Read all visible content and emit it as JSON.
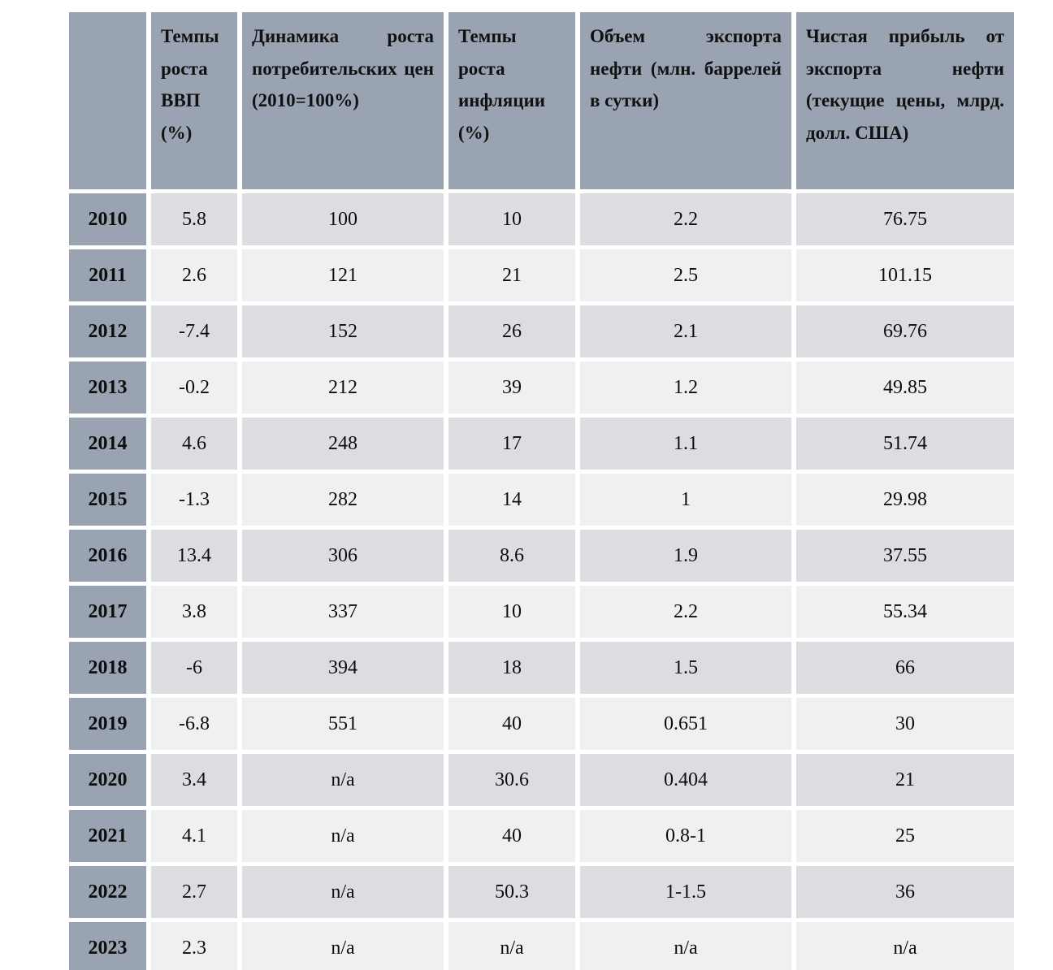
{
  "table": {
    "columns": [
      {
        "label": ""
      },
      {
        "label": "Темпы роста ВВП (%)"
      },
      {
        "label": "Динамика роста потребительских цен (2010=100%)"
      },
      {
        "label": "Темпы роста инфляции (%)"
      },
      {
        "label": "Объем экспорта нефти (млн. баррелей в сутки)"
      },
      {
        "label": "Чистая прибыль от экспорта нефти (текущие цены, млрд. долл. США)"
      }
    ],
    "rows": [
      {
        "year": "2010",
        "values": [
          "5.8",
          "100",
          "10",
          "2.2",
          "76.75"
        ]
      },
      {
        "year": "2011",
        "values": [
          "2.6",
          "121",
          "21",
          "2.5",
          "101.15"
        ]
      },
      {
        "year": "2012",
        "values": [
          "-7.4",
          "152",
          "26",
          "2.1",
          "69.76"
        ]
      },
      {
        "year": "2013",
        "values": [
          "-0.2",
          "212",
          "39",
          "1.2",
          "49.85"
        ]
      },
      {
        "year": "2014",
        "values": [
          "4.6",
          "248",
          "17",
          "1.1",
          "51.74"
        ]
      },
      {
        "year": "2015",
        "values": [
          "-1.3",
          "282",
          "14",
          "1",
          "29.98"
        ]
      },
      {
        "year": "2016",
        "values": [
          "13.4",
          "306",
          "8.6",
          "1.9",
          "37.55"
        ]
      },
      {
        "year": "2017",
        "values": [
          "3.8",
          "337",
          "10",
          "2.2",
          "55.34"
        ]
      },
      {
        "year": "2018",
        "values": [
          "-6",
          "394",
          "18",
          "1.5",
          "66"
        ]
      },
      {
        "year": "2019",
        "values": [
          "-6.8",
          "551",
          "40",
          "0.651",
          "30"
        ]
      },
      {
        "year": "2020",
        "values": [
          "3.4",
          "n/a",
          "30.6",
          "0.404",
          "21"
        ]
      },
      {
        "year": "2021",
        "values": [
          "4.1",
          "n/a",
          "40",
          "0.8-1",
          "25"
        ]
      },
      {
        "year": "2022",
        "values": [
          "2.7",
          "n/a",
          "50.3",
          "1-1.5",
          "36"
        ]
      },
      {
        "year": "2023",
        "values": [
          "2.3",
          "n/a",
          "n/a",
          "n/a",
          "n/a"
        ]
      }
    ]
  },
  "colors": {
    "header_bg": "#9aa3b2",
    "row_dark": "#dbdde1",
    "row_light": "#eef0f2",
    "separator": "#ffffff",
    "text": "#0d0d0d"
  }
}
